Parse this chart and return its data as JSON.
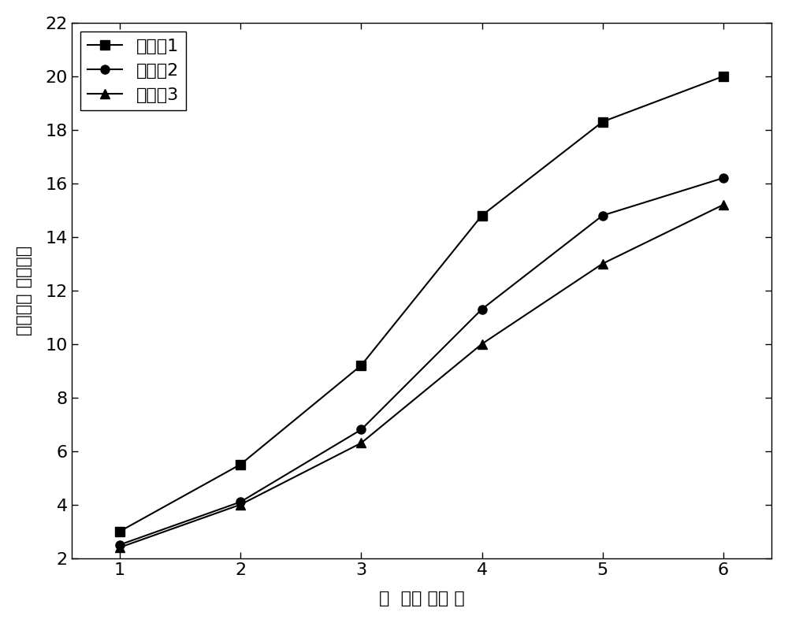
{
  "series": [
    {
      "label": "实施奥1",
      "x": [
        1,
        2,
        3,
        4,
        5,
        6
      ],
      "y": [
        3.0,
        5.5,
        9.2,
        14.8,
        18.3,
        20.0
      ],
      "color": "#000000",
      "marker": "s",
      "linestyle": "-"
    },
    {
      "label": "实施奥2",
      "x": [
        1,
        2,
        3,
        4,
        5,
        6
      ],
      "y": [
        2.5,
        4.1,
        6.8,
        11.3,
        14.8,
        16.2
      ],
      "color": "#000000",
      "marker": "o",
      "linestyle": "-"
    },
    {
      "label": "实施奥3",
      "x": [
        1,
        2,
        3,
        4,
        5,
        6
      ],
      "y": [
        2.4,
        4.0,
        6.3,
        10.0,
        13.0,
        15.2
      ],
      "color": "#000000",
      "marker": "^",
      "linestyle": "-"
    }
  ],
  "xlabel": "时  间（ 小时 ）",
  "ylabel": "氢气量（ 微摩尔）",
  "xlim": [
    0.6,
    6.4
  ],
  "ylim": [
    2,
    22
  ],
  "xticks": [
    1,
    2,
    3,
    4,
    5,
    6
  ],
  "yticks": [
    2,
    4,
    6,
    8,
    10,
    12,
    14,
    16,
    18,
    20,
    22
  ],
  "background_color": "#ffffff",
  "marker_size": 8,
  "linewidth": 1.5,
  "legend_loc": "upper left",
  "legend_fontsize": 16,
  "axis_fontsize": 16,
  "tick_fontsize": 16
}
